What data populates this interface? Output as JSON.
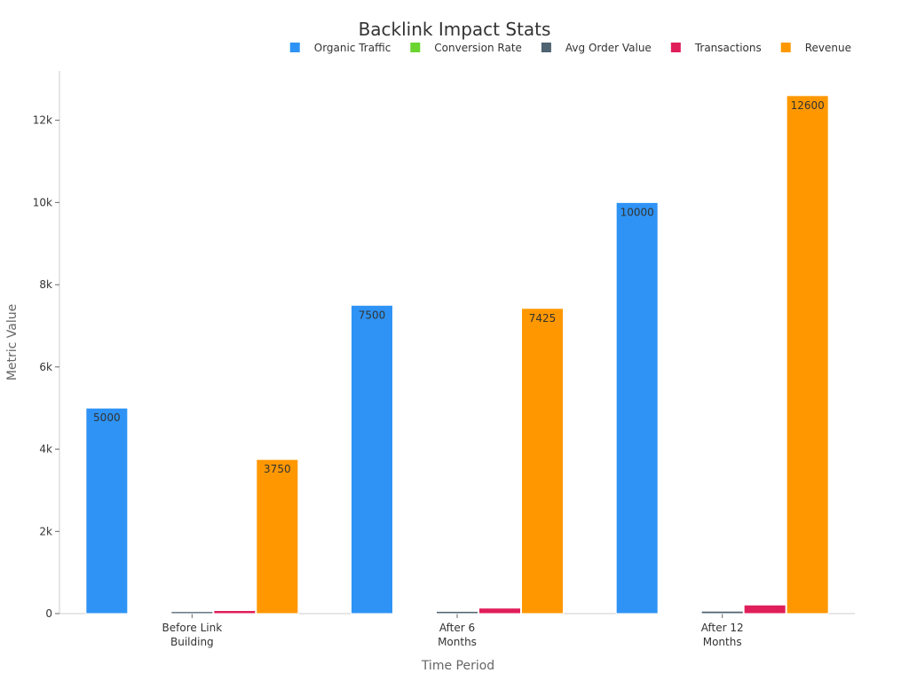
{
  "chart_data": {
    "type": "bar",
    "title": "Backlink Impact Stats",
    "xlabel": "Time Period",
    "ylabel": "Metric Value",
    "categories": [
      [
        "Before Link",
        "Building"
      ],
      [
        "After 6",
        "Months"
      ],
      [
        "After 12",
        "Months"
      ]
    ],
    "ylim": [
      0,
      13200
    ],
    "yticks": [
      0,
      2000,
      4000,
      6000,
      8000,
      10000,
      12000
    ],
    "ytick_labels": [
      "0",
      "2k",
      "4k",
      "6k",
      "8k",
      "10k",
      "12k"
    ],
    "grid": false,
    "legend_position": "top-right",
    "series": [
      {
        "name": "Organic Traffic",
        "color": "#2e93f5",
        "values": [
          5000,
          7500,
          10000
        ],
        "labels": [
          "5000",
          "7500",
          "10000"
        ]
      },
      {
        "name": "Conversion Rate",
        "color": "#6bd42f",
        "values": [
          2,
          2.5,
          3
        ],
        "labels": [
          "",
          "",
          ""
        ]
      },
      {
        "name": "Avg Order Value",
        "color": "#4f6370",
        "values": [
          50,
          55,
          60
        ],
        "labels": [
          "",
          "",
          ""
        ]
      },
      {
        "name": "Transactions",
        "color": "#e01e5a",
        "values": [
          75,
          135,
          210
        ],
        "labels": [
          "",
          "",
          ""
        ]
      },
      {
        "name": "Revenue",
        "color": "#ff9800",
        "values": [
          3750,
          7425,
          12600
        ],
        "labels": [
          "3750",
          "7425",
          "12600"
        ]
      }
    ]
  }
}
